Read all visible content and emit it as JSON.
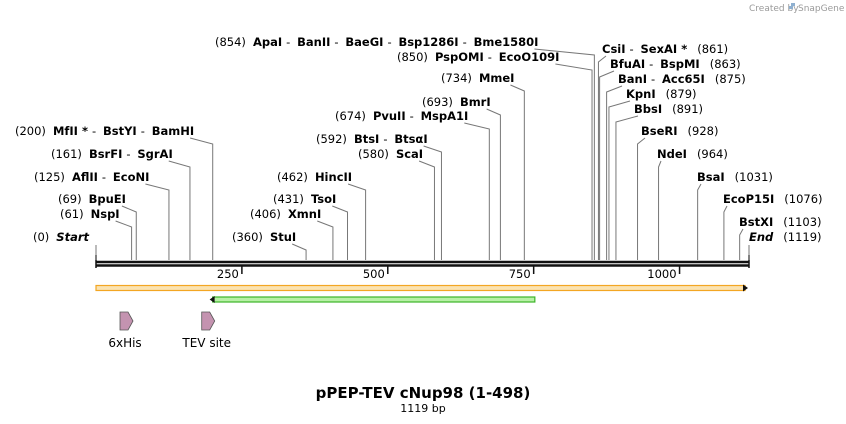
{
  "credit": {
    "prefix": "Created by",
    "brand": "SnapGene"
  },
  "title": "pPEP-TEV cNup98 (1-498)",
  "length_label": "1119 bp",
  "length": 1119,
  "ticks": [
    "250",
    "500",
    "750",
    "1000"
  ],
  "tick_values": [
    250,
    500,
    750,
    1000
  ],
  "colors": {
    "backbone": "#111111",
    "orf": "#f3a623",
    "orf_fill": "#fbe3b0",
    "green": "#3cb528",
    "green_fill": "#b7f0a6",
    "feature": "#c493b0"
  },
  "sites": [
    {
      "pos": "(0)",
      "names": [
        "Start"
      ],
      "bp": 0,
      "italic": true
    },
    {
      "pos": "(61)",
      "names": [
        "NspI"
      ],
      "bp": 61
    },
    {
      "pos": "(69)",
      "names": [
        "BpuEI"
      ],
      "bp": 69
    },
    {
      "pos": "(125)",
      "names": [
        "AflII",
        "EcoNI"
      ],
      "bp": 125
    },
    {
      "pos": "(161)",
      "names": [
        "BsrFI",
        "SgrAI"
      ],
      "bp": 161
    },
    {
      "pos": "(200)",
      "names": [
        "MfII *",
        "BstYI",
        "BamHI"
      ],
      "bp": 200
    },
    {
      "pos": "(360)",
      "names": [
        "StuI"
      ],
      "bp": 360
    },
    {
      "pos": "(406)",
      "names": [
        "XmnI"
      ],
      "bp": 406
    },
    {
      "pos": "(431)",
      "names": [
        "TsoI"
      ],
      "bp": 431
    },
    {
      "pos": "(462)",
      "names": [
        "HincII"
      ],
      "bp": 462
    },
    {
      "pos": "(580)",
      "names": [
        "ScaI"
      ],
      "bp": 580
    },
    {
      "pos": "(592)",
      "names": [
        "BtsI",
        "BtsαI"
      ],
      "bp": 592
    },
    {
      "pos": "(674)",
      "names": [
        "PvuII",
        "MspA1I"
      ],
      "bp": 674
    },
    {
      "pos": "(693)",
      "names": [
        "BmrI"
      ],
      "bp": 693
    },
    {
      "pos": "(734)",
      "names": [
        "MmeI"
      ],
      "bp": 734
    },
    {
      "pos": "(850)",
      "names": [
        "PspOMI",
        "EcoO109I"
      ],
      "bp": 850
    },
    {
      "pos": "(854)",
      "names": [
        "ApaI",
        "BanII",
        "BaeGI",
        "Bsp1286I",
        "Bme1580I"
      ],
      "bp": 854
    },
    {
      "pos": "(861)",
      "names": [
        "CsiI",
        "SexAI *"
      ],
      "bp": 861
    },
    {
      "pos": "(863)",
      "names": [
        "BfuAI",
        "BspMI"
      ],
      "bp": 863
    },
    {
      "pos": "(875)",
      "names": [
        "BanI",
        "Acc65I"
      ],
      "bp": 875
    },
    {
      "pos": "(879)",
      "names": [
        "KpnI"
      ],
      "bp": 879
    },
    {
      "pos": "(891)",
      "names": [
        "BbsI"
      ],
      "bp": 891
    },
    {
      "pos": "(928)",
      "names": [
        "BseRI"
      ],
      "bp": 928
    },
    {
      "pos": "(964)",
      "names": [
        "NdeI"
      ],
      "bp": 964
    },
    {
      "pos": "(1031)",
      "names": [
        "BsaI"
      ],
      "bp": 1031
    },
    {
      "pos": "(1076)",
      "names": [
        "EcoP15I"
      ],
      "bp": 1076
    },
    {
      "pos": "(1103)",
      "names": [
        "BstXI"
      ],
      "bp": 1103
    },
    {
      "pos": "(1119)",
      "names": [
        "End"
      ],
      "bp": 1119,
      "italic": true
    }
  ],
  "features": [
    {
      "label": "6xHis",
      "bp": 48
    },
    {
      "label": "TEV site",
      "bp": 188
    }
  ],
  "orf": {
    "start": 0,
    "end": 1119
  },
  "cds": {
    "start": 193,
    "end": 752,
    "direction": "reverse"
  }
}
